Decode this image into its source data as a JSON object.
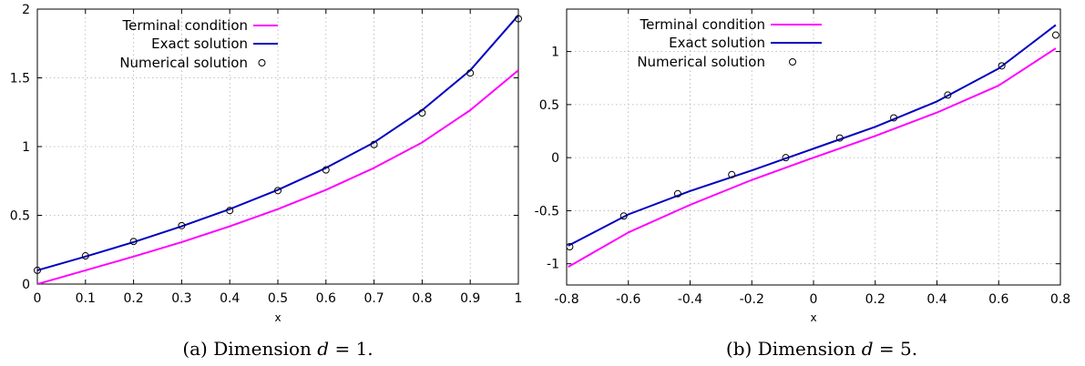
{
  "chart_data": [
    {
      "type": "line",
      "caption_prefix": "(a) Dimension ",
      "caption_var": "d",
      "caption_eq": " = 1.",
      "xlabel": "x",
      "ylabel": "",
      "xlim": [
        0,
        1
      ],
      "ylim": [
        0,
        2
      ],
      "xticks": [
        0,
        0.1,
        0.2,
        0.3,
        0.4,
        0.5,
        0.6,
        0.7,
        0.8,
        0.9,
        1
      ],
      "xtick_labels": [
        "0",
        "0.1",
        "0.2",
        "0.3",
        "0.4",
        "0.5",
        "0.6",
        "0.7",
        "0.8",
        "0.9",
        "1"
      ],
      "yticks": [
        0,
        0.5,
        1,
        1.5,
        2
      ],
      "ytick_labels": [
        "0",
        "0.5",
        "1",
        "1.5",
        "2"
      ],
      "grid": true,
      "legend_position": "top-left",
      "series": [
        {
          "name": "Terminal condition",
          "style": "line",
          "color": "#ff00ff",
          "x": [
            0,
            0.1,
            0.2,
            0.3,
            0.4,
            0.5,
            0.6,
            0.7,
            0.8,
            0.9,
            1
          ],
          "y": [
            0,
            0.1,
            0.2,
            0.305,
            0.42,
            0.545,
            0.685,
            0.845,
            1.03,
            1.265,
            1.555
          ]
        },
        {
          "name": "Exact solution",
          "style": "line",
          "color": "#0000c0",
          "x": [
            0,
            0.1,
            0.2,
            0.3,
            0.4,
            0.5,
            0.6,
            0.7,
            0.8,
            0.9,
            1
          ],
          "y": [
            0.1,
            0.2,
            0.305,
            0.42,
            0.545,
            0.685,
            0.845,
            1.03,
            1.265,
            1.555,
            1.955
          ]
        },
        {
          "name": "Numerical solution",
          "style": "markers",
          "color": "#000000",
          "x": [
            0,
            0.1,
            0.2,
            0.3,
            0.4,
            0.5,
            0.6,
            0.7,
            0.8,
            0.9,
            1
          ],
          "y": [
            0.1,
            0.205,
            0.31,
            0.425,
            0.535,
            0.68,
            0.83,
            1.015,
            1.245,
            1.535,
            1.93
          ]
        }
      ]
    },
    {
      "type": "line",
      "caption_prefix": "(b) Dimension ",
      "caption_var": "d",
      "caption_eq": " = 5.",
      "xlabel": "x",
      "ylabel": "",
      "xlim": [
        -0.8,
        0.8
      ],
      "ylim": [
        -1.2,
        1.4
      ],
      "xticks": [
        -0.8,
        -0.6,
        -0.4,
        -0.2,
        0,
        0.2,
        0.4,
        0.6,
        0.8
      ],
      "xtick_labels": [
        "-0.8",
        "-0.6",
        "-0.4",
        "-0.2",
        "0",
        "0.2",
        "0.4",
        "0.6",
        "0.8"
      ],
      "yticks": [
        -1,
        -0.5,
        0,
        0.5,
        1
      ],
      "ytick_labels": [
        "-1",
        "-0.5",
        "0",
        "0.5",
        "1"
      ],
      "grid": true,
      "legend_position": "top-left",
      "series": [
        {
          "name": "Terminal condition",
          "style": "line",
          "color": "#ff00ff",
          "x": [
            -0.795,
            -0.6,
            -0.4,
            -0.2,
            0,
            0.2,
            0.4,
            0.6,
            0.785
          ],
          "y": [
            -1.03,
            -0.705,
            -0.445,
            -0.21,
            0.0,
            0.205,
            0.425,
            0.68,
            1.03
          ]
        },
        {
          "name": "Exact solution",
          "style": "line",
          "color": "#0000c0",
          "x": [
            -0.795,
            -0.6,
            -0.4,
            -0.2,
            0,
            0.2,
            0.4,
            0.6,
            0.785
          ],
          "y": [
            -0.83,
            -0.535,
            -0.315,
            -0.12,
            0.085,
            0.29,
            0.53,
            0.84,
            1.25
          ]
        },
        {
          "name": "Numerical solution",
          "style": "markers",
          "color": "#000000",
          "x": [
            -0.79,
            -0.615,
            -0.44,
            -0.265,
            -0.09,
            0.085,
            0.26,
            0.435,
            0.61,
            0.785
          ],
          "y": [
            -0.84,
            -0.55,
            -0.34,
            -0.16,
            0.0,
            0.185,
            0.375,
            0.59,
            0.865,
            1.155
          ]
        }
      ]
    }
  ]
}
